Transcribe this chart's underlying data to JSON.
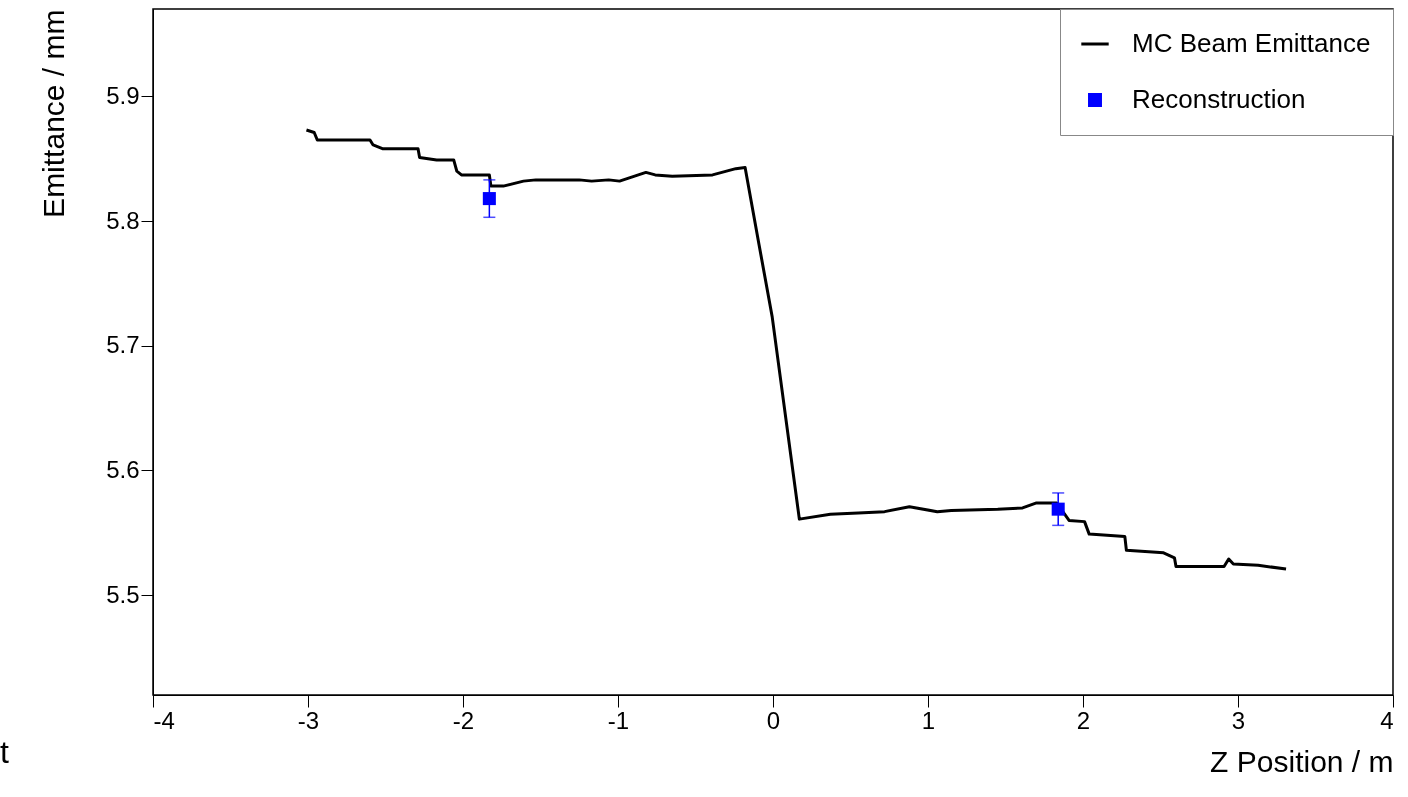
{
  "chart_data": {
    "type": "line",
    "xlabel": "Z Position  /  m",
    "ylabel": "Emittance  /  mm",
    "xlim": [
      -4,
      4
    ],
    "ylim": [
      5.42,
      5.97
    ],
    "xticks": [
      -4,
      -3,
      -2,
      -1,
      0,
      1,
      2,
      3,
      4
    ],
    "yticks": [
      5.5,
      5.6,
      5.7,
      5.8,
      5.9
    ],
    "grid": false,
    "legend": "top right",
    "annotations": [
      "t"
    ],
    "series": [
      {
        "name": "MC Beam Emittance",
        "color": "#000000",
        "line_style": "solid",
        "x": [
          -3.01,
          -2.96,
          -2.94,
          -2.6,
          -2.58,
          -2.52,
          -2.29,
          -2.28,
          -2.17,
          -2.06,
          -2.04,
          -2.01,
          -1.83,
          -1.82,
          -1.74,
          -1.61,
          -1.53,
          -1.25,
          -1.17,
          -1.06,
          -0.99,
          -0.82,
          -0.76,
          -0.65,
          -0.39,
          -0.24,
          -0.18,
          -0.09,
          -0.005,
          0.17,
          0.37,
          0.55,
          0.72,
          0.88,
          1.06,
          1.15,
          1.45,
          1.61,
          1.7,
          1.83,
          1.91,
          2.01,
          2.04,
          2.27,
          2.28,
          2.52,
          2.59,
          2.6,
          2.91,
          2.94,
          2.97,
          3.13,
          3.31
        ],
        "values": [
          5.873,
          5.871,
          5.865,
          5.865,
          5.861,
          5.858,
          5.858,
          5.851,
          5.849,
          5.849,
          5.84,
          5.837,
          5.837,
          5.828,
          5.828,
          5.832,
          5.833,
          5.833,
          5.832,
          5.833,
          5.832,
          5.839,
          5.837,
          5.836,
          5.837,
          5.842,
          5.843,
          5.781,
          5.723,
          5.561,
          5.565,
          5.566,
          5.567,
          5.571,
          5.567,
          5.568,
          5.569,
          5.57,
          5.574,
          5.574,
          5.56,
          5.559,
          5.549,
          5.547,
          5.536,
          5.534,
          5.53,
          5.523,
          5.523,
          5.529,
          5.525,
          5.524,
          5.521
        ]
      },
      {
        "name": "Reconstruction",
        "color": "#0000ff",
        "type": "scatter",
        "marker": "square",
        "x": [
          -1.83,
          1.84
        ],
        "values": [
          5.818,
          5.569
        ],
        "errors": [
          0.015,
          0.013
        ]
      }
    ]
  }
}
